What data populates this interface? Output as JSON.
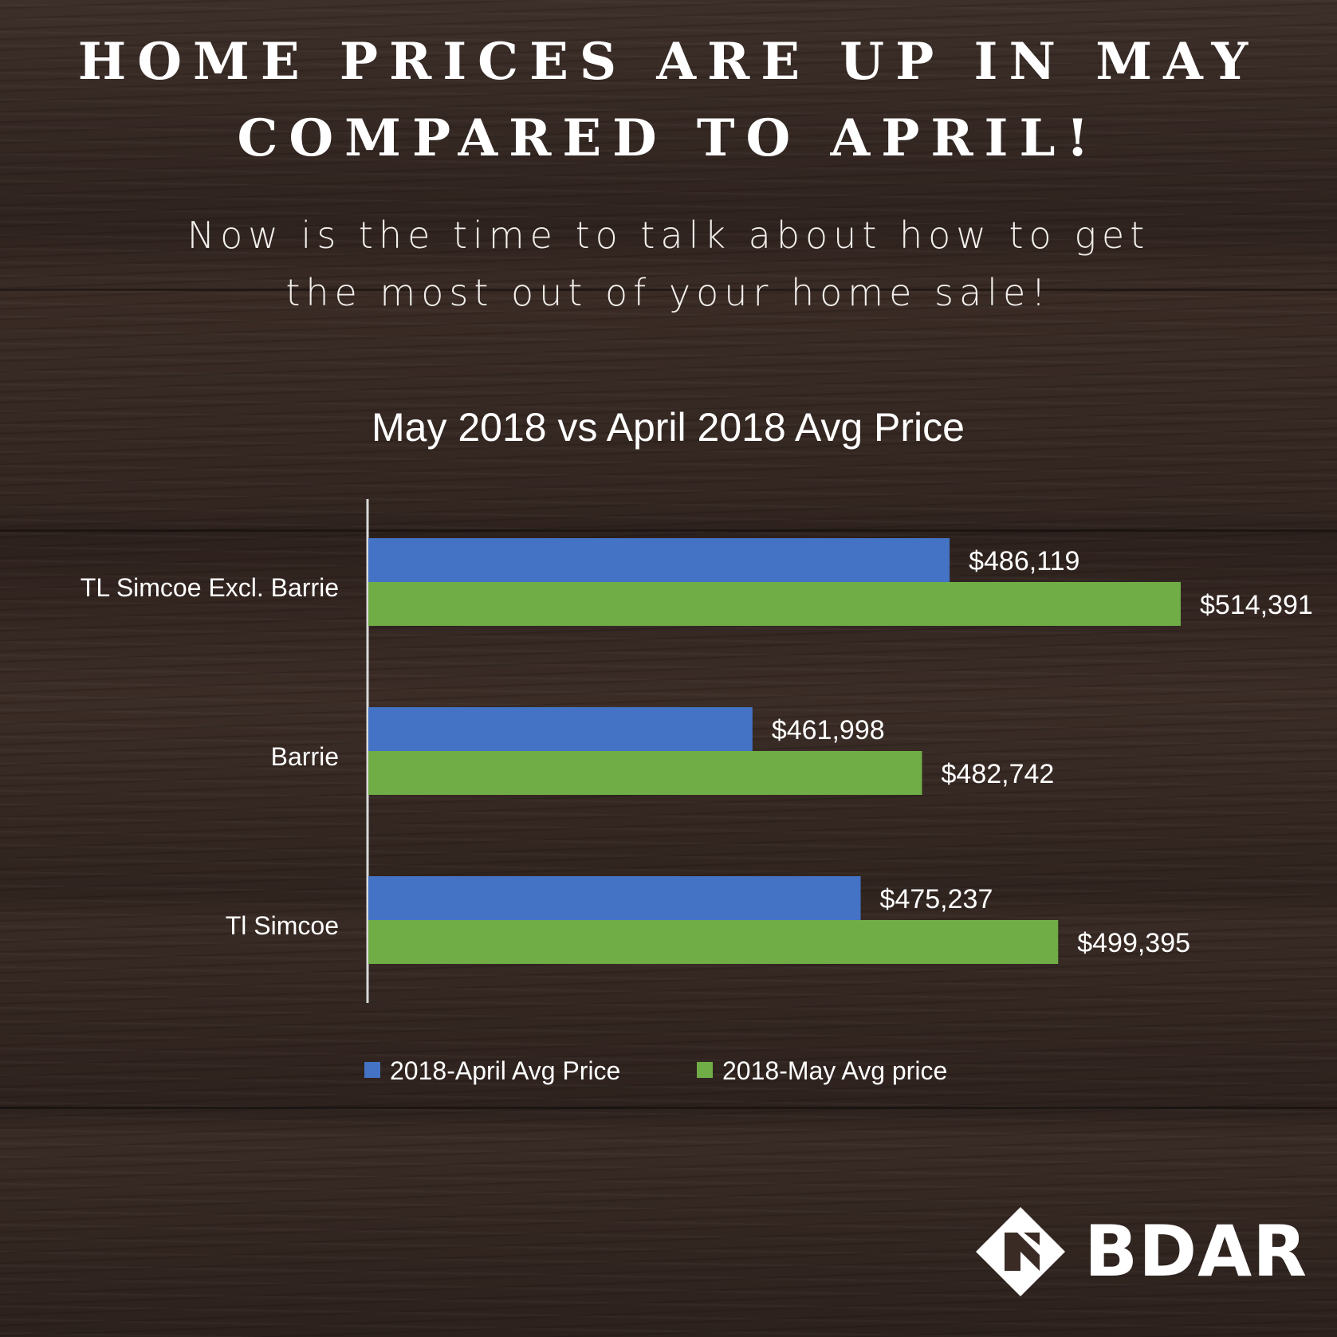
{
  "headline": {
    "line1": "HOME PRICES ARE UP IN MAY",
    "line2": "COMPARED TO APRIL!"
  },
  "subline": {
    "line1": "Now is the time to talk about how to get",
    "line2": "the most out of your home sale!"
  },
  "logo": {
    "text": "BDAR",
    "icon": "bdar-logo-icon"
  },
  "colors": {
    "april": "#4472c4",
    "may": "#70ad47",
    "text": "#ffffff"
  },
  "chart_data": {
    "type": "bar",
    "orientation": "horizontal",
    "title": "May 2018 vs April 2018 Avg Price",
    "categories": [
      "TL Simcoe Excl. Barrie",
      "Barrie",
      "Tl Simcoe"
    ],
    "series": [
      {
        "name": "2018-April Avg Price",
        "values": [
          486119,
          461998,
          475237
        ],
        "labels": [
          "$486,119",
          "$461,998",
          "$475,237"
        ]
      },
      {
        "name": "2018-May Avg price",
        "values": [
          514391,
          482742,
          499395
        ],
        "labels": [
          "$514,391",
          "$482,742",
          "$499,395"
        ]
      }
    ],
    "xlim": [
      415000,
      530000
    ],
    "legend": "bottom",
    "grid": false
  }
}
